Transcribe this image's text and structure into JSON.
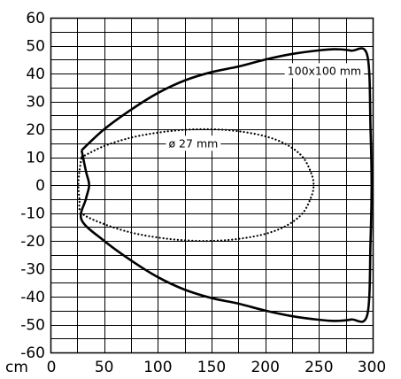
{
  "chart_data": {
    "type": "line",
    "title": "",
    "xlabel": "",
    "ylabel": "",
    "x_unit": "cm",
    "xlim": [
      0,
      300
    ],
    "ylim": [
      -60,
      60
    ],
    "x_ticks": [
      0,
      50,
      100,
      150,
      200,
      250,
      300
    ],
    "x_tick_labels": [
      "0",
      "50",
      "100",
      "150",
      "200",
      "250",
      "300"
    ],
    "y_ticks": [
      60,
      50,
      40,
      30,
      20,
      10,
      0,
      -10,
      -20,
      -30,
      -40,
      -50,
      -60
    ],
    "y_tick_labels": [
      "60",
      "50",
      "40",
      "30",
      "20",
      "10",
      "0",
      "-10",
      "-20",
      "-30",
      "-40",
      "-50",
      "-60"
    ],
    "grid": true,
    "x_grid_step": 25,
    "y_grid_step": 5,
    "series": [
      {
        "name": "100x100 mm",
        "style": "solid",
        "color": "#000000",
        "points": [
          [
            29,
            12.5
          ],
          [
            50,
            20
          ],
          [
            75,
            27
          ],
          [
            100,
            33
          ],
          [
            125,
            37.5
          ],
          [
            150,
            40.5
          ],
          [
            175,
            42.5
          ],
          [
            200,
            45
          ],
          [
            225,
            47
          ],
          [
            250,
            48.3
          ],
          [
            265,
            48.7
          ],
          [
            280,
            48.2
          ],
          [
            295,
            46.5
          ],
          [
            298,
            20
          ],
          [
            299,
            0
          ],
          [
            298,
            -20
          ],
          [
            295,
            -46.5
          ],
          [
            280,
            -48.2
          ],
          [
            265,
            -48.7
          ],
          [
            250,
            -48.3
          ],
          [
            225,
            -47
          ],
          [
            200,
            -45
          ],
          [
            175,
            -42.5
          ],
          [
            150,
            -40.5
          ],
          [
            125,
            -37.5
          ],
          [
            100,
            -33
          ],
          [
            75,
            -27
          ],
          [
            50,
            -20
          ],
          [
            29,
            -12.5
          ],
          [
            33,
            -5
          ],
          [
            36,
            0
          ],
          [
            33,
            5
          ],
          [
            29,
            12.5
          ]
        ]
      },
      {
        "name": "ø 27 mm",
        "style": "dotted",
        "color": "#000000",
        "points": [
          [
            29,
            10
          ],
          [
            50,
            14
          ],
          [
            75,
            17
          ],
          [
            100,
            18.8
          ],
          [
            125,
            19.8
          ],
          [
            150,
            20
          ],
          [
            175,
            19.3
          ],
          [
            200,
            17.5
          ],
          [
            220,
            14.5
          ],
          [
            235,
            10
          ],
          [
            243,
            4
          ],
          [
            245,
            0
          ],
          [
            243,
            -4
          ],
          [
            235,
            -10
          ],
          [
            220,
            -14.5
          ],
          [
            200,
            -17.5
          ],
          [
            175,
            -19.3
          ],
          [
            150,
            -20
          ],
          [
            125,
            -19.8
          ],
          [
            100,
            -18.8
          ],
          [
            75,
            -17
          ],
          [
            50,
            -14
          ],
          [
            29,
            -10
          ],
          [
            27,
            -5
          ],
          [
            26,
            0
          ],
          [
            27,
            5
          ],
          [
            29,
            10
          ]
        ]
      }
    ],
    "annotations": [
      {
        "text": "100x100 mm",
        "x": 255,
        "y": 41,
        "series": 0
      },
      {
        "text": "ø 27 mm",
        "x": 133,
        "y": 15,
        "series": 1
      }
    ]
  }
}
